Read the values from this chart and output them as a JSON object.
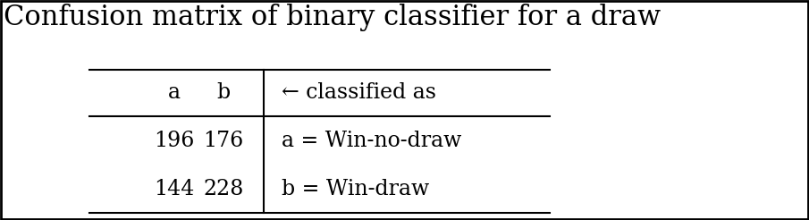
{
  "title": "Confusion matrix of binary classifier for a draw",
  "header_cols": [
    "a",
    "b",
    "← classified as"
  ],
  "rows": [
    [
      "196",
      "176",
      "a = Win-no-draw"
    ],
    [
      "144",
      "228",
      "b = Win-draw"
    ]
  ],
  "bg_color": "#ffffff",
  "border_color": "#000000",
  "text_color": "#000000",
  "title_fontsize": 22,
  "header_fontsize": 17,
  "cell_fontsize": 17,
  "fig_width": 9.05,
  "fig_height": 2.46
}
